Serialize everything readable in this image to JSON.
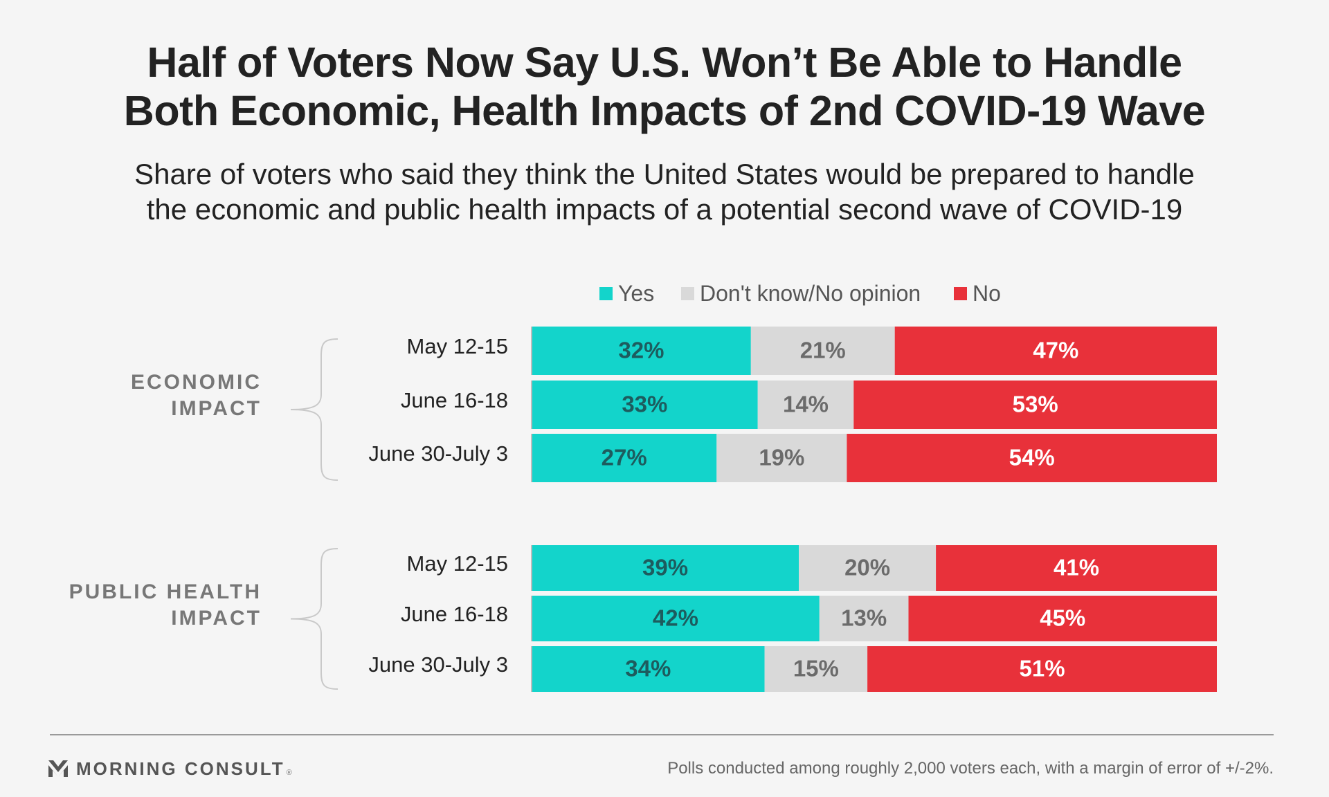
{
  "title": {
    "line1": "Half of Voters Now Say U.S. Won’t Be Able to Handle",
    "line2": "Both Economic, Health Impacts of 2nd COVID-19 Wave"
  },
  "subtitle": {
    "line1": "Share of voters who said they think the United States would be prepared to handle",
    "line2": "the economic and public health impacts of a potential second wave of COVID-19"
  },
  "legend": [
    {
      "label": "Yes",
      "color": "#13d4cb"
    },
    {
      "label": "Don't know/No opinion",
      "color": "#d9d9d9"
    },
    {
      "label": "No",
      "color": "#e8313a"
    }
  ],
  "chart_data": {
    "type": "bar",
    "orientation": "horizontal",
    "stacked": true,
    "value_unit": "%",
    "xlim": [
      0,
      100
    ],
    "legend_position": "top",
    "grid": false,
    "series": [
      {
        "name": "Yes",
        "color": "#13d4cb",
        "label_color": "#1d5c5e"
      },
      {
        "name": "Don't know/No opinion",
        "color": "#d9d9d9",
        "label_color": "#6b6b6b"
      },
      {
        "name": "No",
        "color": "#e8313a",
        "label_color": "#ffffff"
      }
    ],
    "groups": [
      {
        "label_lines": [
          "ECONOMIC",
          "IMPACT"
        ],
        "rows": [
          {
            "category": "May 12-15",
            "values": [
              32,
              21,
              47
            ]
          },
          {
            "category": "June 16-18",
            "values": [
              33,
              14,
              53
            ]
          },
          {
            "category": "June 30-July 3",
            "values": [
              27,
              19,
              54
            ]
          }
        ]
      },
      {
        "label_lines": [
          "PUBLIC HEALTH",
          "IMPACT"
        ],
        "rows": [
          {
            "category": "May 12-15",
            "values": [
              39,
              20,
              41
            ]
          },
          {
            "category": "June 16-18",
            "values": [
              42,
              13,
              45
            ]
          },
          {
            "category": "June 30-July 3",
            "values": [
              34,
              15,
              51
            ]
          }
        ]
      }
    ]
  },
  "footer": {
    "brand": "MORNING CONSULT",
    "brand_mark": "®",
    "note": "Polls conducted among roughly 2,000 voters each, with a margin of error of +/-2%."
  }
}
